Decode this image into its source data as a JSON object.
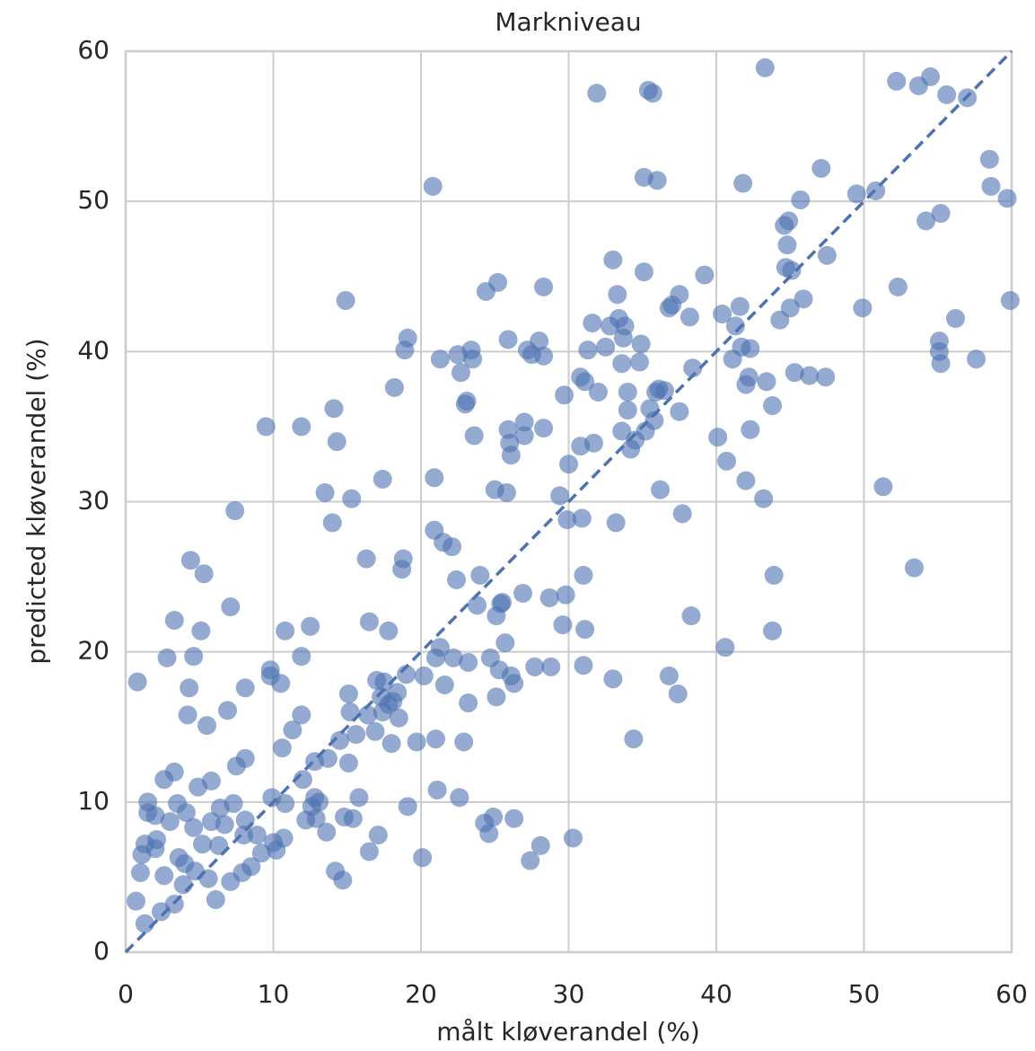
{
  "chart_data": {
    "type": "scatter",
    "title": "Markniveau",
    "xlabel": "målt kløverandel (%)",
    "ylabel": "predicted kløverandel (%)",
    "color": "#4c72b0",
    "grid": true,
    "xlim": [
      0,
      60
    ],
    "ylim": [
      0,
      60
    ],
    "xticks": [
      0,
      10,
      20,
      30,
      40,
      50,
      60
    ],
    "yticks": [
      0,
      10,
      20,
      30,
      40,
      50,
      60
    ],
    "identity_line": {
      "x": [
        0,
        60
      ],
      "y": [
        0,
        60
      ]
    },
    "x": [
      0.8,
      0.7,
      1.0,
      1.1,
      1.3,
      1.3,
      1.5,
      1.5,
      2.0,
      2.1,
      2.0,
      2.4,
      2.6,
      2.6,
      2.8,
      3.0,
      3.3,
      3.3,
      3.3,
      3.5,
      3.6,
      3.9,
      4.0,
      4.1,
      4.2,
      4.3,
      4.4,
      4.6,
      4.6,
      4.9,
      4.7,
      5.1,
      5.2,
      5.3,
      5.5,
      5.6,
      5.8,
      5.8,
      6.1,
      6.3,
      6.4,
      6.7,
      6.9,
      7.1,
      7.1,
      7.3,
      7.4,
      7.5,
      7.9,
      8.1,
      8.1,
      8.1,
      8.0,
      8.5,
      8.9,
      9.2,
      9.5,
      9.8,
      9.8,
      9.9,
      10.0,
      10.2,
      10.5,
      10.6,
      10.8,
      10.7,
      10.8,
      11.3,
      11.9,
      11.9,
      11.9,
      12.0,
      12.2,
      12.5,
      12.6,
      12.8,
      12.8,
      12.9,
      13.1,
      13.5,
      13.6,
      13.7,
      14.0,
      14.1,
      14.2,
      14.3,
      14.5,
      14.7,
      14.9,
      14.8,
      15.1,
      15.1,
      15.2,
      15.3,
      15.4,
      15.6,
      15.8,
      16.3,
      16.4,
      16.5,
      16.5,
      16.9,
      17.0,
      17.1,
      17.3,
      17.4,
      17.4,
      17.5,
      17.8,
      17.8,
      18.0,
      18.1,
      18.2,
      18.4,
      18.5,
      18.7,
      18.8,
      18.9,
      19.0,
      19.1,
      19.1,
      19.7,
      20.1,
      20.2,
      20.8,
      20.9,
      20.9,
      21.0,
      21.0,
      21.1,
      21.3,
      21.3,
      21.5,
      21.6,
      22.1,
      22.2,
      22.4,
      22.5,
      22.6,
      22.7,
      22.9,
      23.0,
      23.1,
      23.2,
      23.2,
      23.4,
      23.5,
      23.6,
      23.8,
      24.0,
      24.3,
      24.4,
      24.6,
      24.7,
      24.9,
      25.0,
      25.1,
      25.1,
      25.2,
      25.3,
      25.4,
      25.5,
      25.7,
      25.8,
      25.9,
      25.9,
      26.0,
      26.1,
      26.1,
      26.3,
      26.3,
      26.9,
      27.0,
      27.0,
      27.2,
      27.4,
      27.5,
      27.7,
      28.0,
      28.1,
      28.3,
      28.3,
      28.3,
      28.7,
      28.8,
      29.4,
      29.6,
      29.7,
      29.8,
      29.9,
      30.0,
      30.3,
      30.8,
      30.8,
      30.9,
      31.0,
      31.0,
      31.1,
      31.1,
      31.3,
      31.6,
      31.7,
      31.9,
      32.0,
      32.5,
      32.8,
      33.0,
      33.0,
      33.2,
      33.3,
      33.4,
      33.6,
      33.6,
      33.7,
      33.8,
      34.0,
      34.0,
      34.2,
      34.4,
      34.5,
      34.8,
      34.9,
      35.1,
      35.1,
      35.2,
      35.4,
      35.5,
      35.7,
      35.8,
      35.9,
      36.0,
      36.1,
      36.2,
      36.5,
      36.8,
      36.8,
      37.0,
      37.4,
      37.5,
      37.5,
      37.7,
      38.2,
      38.3,
      38.4,
      39.2,
      40.1,
      40.4,
      40.6,
      40.7,
      41.1,
      41.3,
      41.6,
      41.7,
      41.8,
      42.0,
      42.0,
      42.2,
      42.3,
      42.3,
      43.2,
      43.3,
      43.4,
      43.8,
      43.8,
      43.9,
      44.3,
      44.6,
      44.7,
      44.8,
      44.9,
      45.0,
      45.1,
      45.3,
      45.7,
      45.9,
      46.3,
      47.1,
      47.4,
      47.5,
      49.5,
      49.9,
      50.8,
      51.3,
      52.2,
      52.3,
      53.4,
      53.7,
      54.2,
      54.5,
      55.1,
      55.1,
      55.2,
      55.2,
      55.6,
      56.2,
      57.0,
      57.6,
      58.5,
      58.6,
      59.7,
      59.9
    ],
    "y": [
      18.0,
      3.4,
      5.3,
      6.5,
      7.2,
      1.9,
      10.0,
      9.3,
      9.1,
      7.5,
      6.9,
      2.7,
      5.1,
      11.5,
      19.6,
      8.7,
      12.0,
      3.2,
      22.1,
      9.9,
      6.3,
      4.5,
      5.9,
      9.3,
      15.8,
      17.6,
      26.1,
      19.7,
      8.3,
      11.0,
      5.4,
      21.4,
      7.2,
      25.2,
      15.1,
      4.9,
      11.4,
      8.7,
      3.5,
      7.1,
      9.6,
      8.5,
      16.1,
      23.0,
      4.7,
      9.9,
      29.4,
      12.4,
      5.3,
      17.6,
      12.9,
      8.8,
      7.8,
      5.7,
      7.8,
      6.6,
      35.0,
      18.8,
      18.4,
      10.3,
      7.3,
      6.8,
      17.9,
      13.6,
      21.4,
      7.6,
      9.9,
      14.8,
      35.0,
      19.7,
      15.8,
      11.5,
      8.8,
      21.7,
      9.7,
      12.7,
      10.3,
      8.9,
      10.0,
      30.6,
      8.0,
      12.9,
      28.6,
      36.2,
      5.4,
      34.0,
      14.1,
      4.8,
      43.4,
      9.0,
      17.2,
      12.6,
      16.0,
      30.2,
      8.9,
      14.5,
      10.3,
      26.2,
      15.8,
      22.0,
      6.7,
      14.7,
      18.1,
      7.8,
      17.0,
      16.0,
      31.5,
      18.0,
      21.4,
      16.5,
      13.9,
      16.7,
      37.6,
      17.3,
      15.6,
      25.5,
      26.2,
      40.1,
      18.5,
      40.9,
      9.7,
      14.0,
      6.3,
      18.4,
      51.0,
      31.6,
      28.1,
      19.6,
      14.2,
      10.8,
      39.5,
      20.3,
      27.3,
      17.8,
      27.0,
      19.6,
      24.8,
      39.8,
      10.3,
      38.6,
      14.0,
      36.5,
      36.7,
      16.6,
      19.3,
      40.1,
      39.5,
      34.4,
      23.1,
      25.1,
      8.6,
      44.0,
      7.9,
      19.6,
      9.0,
      30.8,
      17.0,
      22.4,
      44.6,
      18.8,
      23.2,
      23.3,
      20.6,
      30.6,
      40.8,
      34.8,
      33.9,
      33.1,
      18.4,
      8.9,
      17.9,
      23.9,
      34.4,
      35.3,
      40.1,
      6.1,
      39.8,
      19.0,
      40.7,
      7.1,
      34.9,
      44.3,
      39.7,
      23.6,
      19.0,
      30.4,
      21.8,
      37.1,
      23.8,
      28.8,
      32.5,
      7.6,
      33.7,
      38.3,
      28.9,
      25.1,
      19.1,
      21.5,
      38.0,
      40.1,
      41.9,
      33.9,
      57.2,
      37.3,
      40.3,
      41.7,
      46.1,
      18.2,
      28.6,
      43.8,
      42.2,
      39.2,
      34.7,
      40.9,
      41.7,
      37.3,
      36.1,
      33.5,
      14.2,
      34.1,
      39.3,
      40.5,
      51.6,
      45.3,
      34.7,
      57.4,
      36.2,
      57.2,
      35.4,
      37.3,
      51.4,
      37.5,
      30.8,
      37.4,
      42.9,
      18.4,
      43.1,
      17.2,
      43.8,
      36.0,
      29.2,
      42.3,
      22.4,
      38.9,
      45.1,
      34.3,
      42.5,
      20.3,
      32.7,
      39.5,
      41.7,
      43.0,
      40.3,
      51.2,
      31.4,
      37.8,
      38.3,
      34.8,
      40.2,
      30.2,
      58.9,
      38.0,
      36.4,
      21.4,
      25.1,
      42.1,
      48.4,
      45.6,
      47.1,
      48.7,
      42.9,
      45.4,
      38.6,
      50.1,
      43.5,
      38.4,
      52.2,
      38.3,
      46.4,
      50.5,
      42.9,
      50.7,
      31.0,
      58.0,
      44.3,
      25.6,
      57.7,
      48.7,
      58.3,
      40.7,
      40.0,
      39.2,
      49.2,
      57.1,
      42.2,
      56.9,
      39.5,
      52.8,
      51.0,
      50.2,
      43.4
    ]
  }
}
